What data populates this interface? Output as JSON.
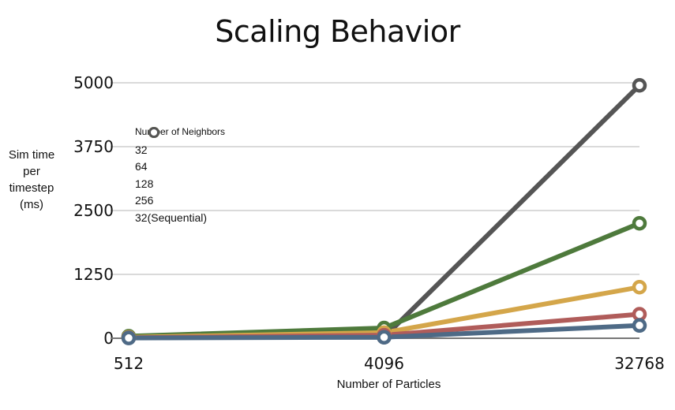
{
  "chart_data": {
    "type": "line",
    "title": "Scaling Behavior",
    "xlabel": "Number of Particles",
    "ylabel": "Sim time\nper\ntimestep\n(ms)",
    "categories": [
      "512",
      "4096",
      "32768"
    ],
    "yticks": [
      "0",
      "1250",
      "2500",
      "3750",
      "5000"
    ],
    "ylim": [
      0,
      5000
    ],
    "grid": true,
    "legend": {
      "title": "Number of Neighbors",
      "placement": "top-left"
    },
    "series": [
      {
        "name": "32",
        "color": "#4e6a86",
        "values": [
          5,
          20,
          250
        ]
      },
      {
        "name": "64",
        "color": "#b05c5a",
        "values": [
          10,
          60,
          470
        ]
      },
      {
        "name": "128",
        "color": "#d4a64a",
        "values": [
          20,
          110,
          1000
        ]
      },
      {
        "name": "256",
        "color": "#4e7a3c",
        "values": [
          40,
          200,
          2250
        ]
      },
      {
        "name": "32(Sequential)",
        "color": "#555555",
        "values": [
          30,
          20,
          4950
        ]
      }
    ]
  }
}
